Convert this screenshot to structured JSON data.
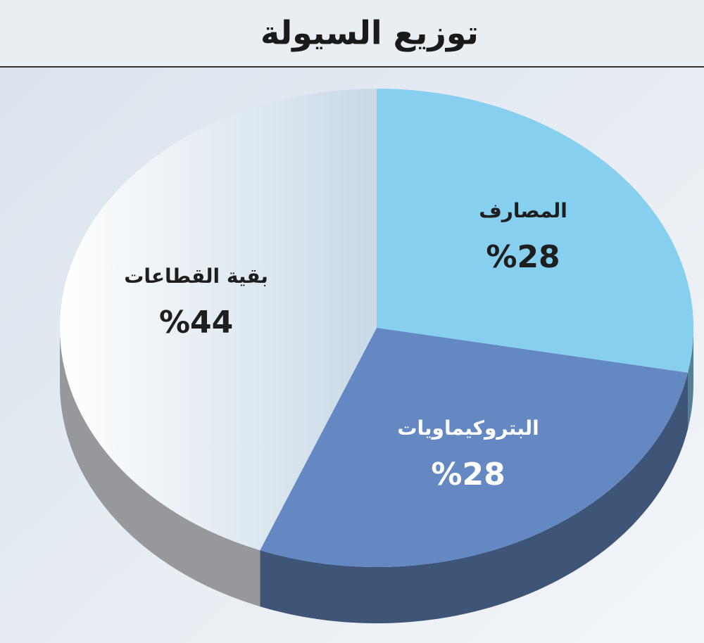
{
  "chart_data": {
    "type": "pie",
    "title": "توزيع السيولة",
    "categories": [
      "المصارف",
      "البتروكيماويات",
      "بقية القطاعات"
    ],
    "values": [
      28,
      28,
      44
    ],
    "value_labels": [
      "%28",
      "%28",
      "%44"
    ],
    "colors": [
      "#87cfee",
      "#6489c2",
      "#e6edf3"
    ]
  }
}
